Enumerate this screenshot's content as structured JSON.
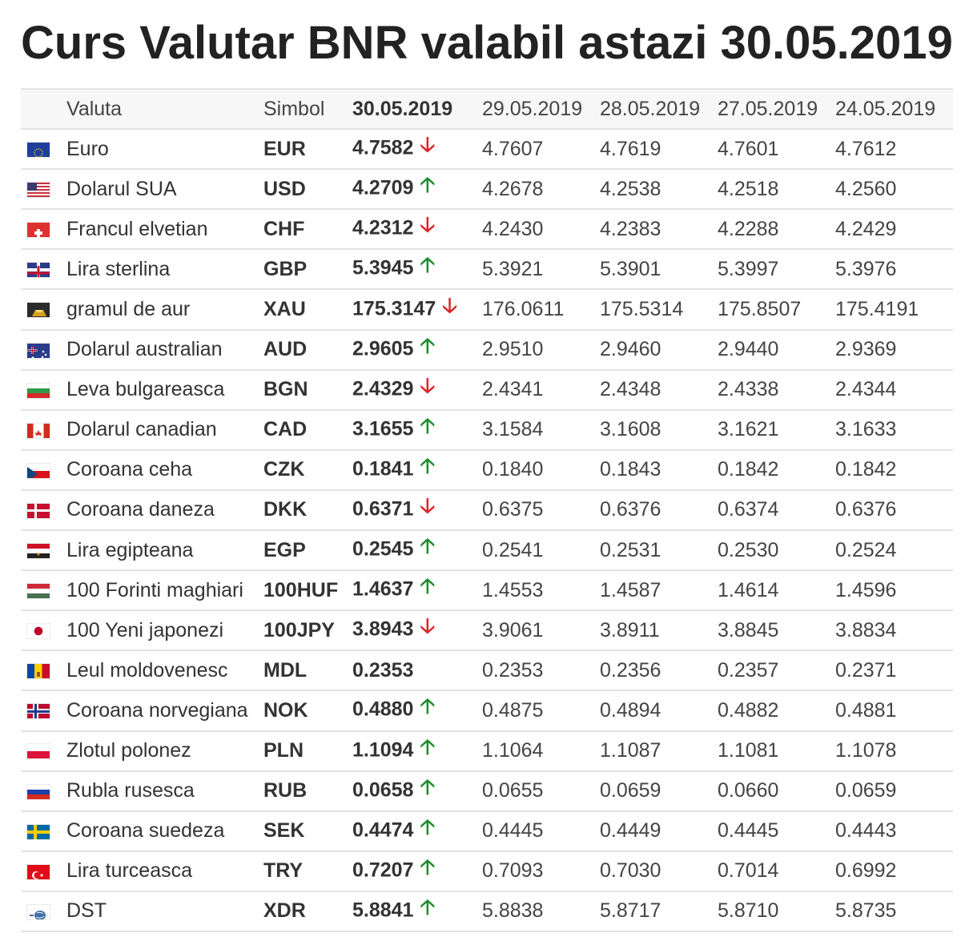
{
  "title": "Curs Valutar BNR valabil astazi 30.05.2019",
  "headers": {
    "currency": "Valuta",
    "symbol": "Simbol",
    "dates": [
      "30.05.2019",
      "29.05.2019",
      "28.05.2019",
      "27.05.2019",
      "24.05.2019"
    ]
  },
  "trend_glyphs": {
    "up": "🡡",
    "down": "🡣"
  },
  "colors": {
    "up": "#1e8c2d",
    "down": "#d9252a",
    "border": "#e3e3e3",
    "header_bg": "#f7f7f7"
  },
  "rows": [
    {
      "flag": "eu-flag",
      "name": "Euro",
      "symbol": "EUR",
      "today": "4.7582",
      "trend": "down",
      "values": [
        "4.7607",
        "4.7619",
        "4.7601",
        "4.7612"
      ]
    },
    {
      "flag": "us-flag",
      "name": "Dolarul SUA",
      "symbol": "USD",
      "today": "4.2709",
      "trend": "up",
      "values": [
        "4.2678",
        "4.2538",
        "4.2518",
        "4.2560"
      ]
    },
    {
      "flag": "ch-flag",
      "name": "Francul elvetian",
      "symbol": "CHF",
      "today": "4.2312",
      "trend": "down",
      "values": [
        "4.2430",
        "4.2383",
        "4.2288",
        "4.2429"
      ]
    },
    {
      "flag": "gb-flag",
      "name": "Lira sterlina",
      "symbol": "GBP",
      "today": "5.3945",
      "trend": "up",
      "values": [
        "5.3921",
        "5.3901",
        "5.3997",
        "5.3976"
      ]
    },
    {
      "flag": "gold-icon",
      "name": "gramul de aur",
      "symbol": "XAU",
      "today": "175.3147",
      "trend": "down",
      "values": [
        "176.0611",
        "175.5314",
        "175.8507",
        "175.4191"
      ]
    },
    {
      "flag": "au-flag",
      "name": "Dolarul australian",
      "symbol": "AUD",
      "today": "2.9605",
      "trend": "up",
      "values": [
        "2.9510",
        "2.9460",
        "2.9440",
        "2.9369"
      ]
    },
    {
      "flag": "bg-flag",
      "name": "Leva bulgareasca",
      "symbol": "BGN",
      "today": "2.4329",
      "trend": "down",
      "values": [
        "2.4341",
        "2.4348",
        "2.4338",
        "2.4344"
      ]
    },
    {
      "flag": "ca-flag",
      "name": "Dolarul canadian",
      "symbol": "CAD",
      "today": "3.1655",
      "trend": "up",
      "values": [
        "3.1584",
        "3.1608",
        "3.1621",
        "3.1633"
      ]
    },
    {
      "flag": "cz-flag",
      "name": "Coroana ceha",
      "symbol": "CZK",
      "today": "0.1841",
      "trend": "up",
      "values": [
        "0.1840",
        "0.1843",
        "0.1842",
        "0.1842"
      ]
    },
    {
      "flag": "dk-flag",
      "name": "Coroana daneza",
      "symbol": "DKK",
      "today": "0.6371",
      "trend": "down",
      "values": [
        "0.6375",
        "0.6376",
        "0.6374",
        "0.6376"
      ]
    },
    {
      "flag": "eg-flag",
      "name": "Lira egipteana",
      "symbol": "EGP",
      "today": "0.2545",
      "trend": "up",
      "values": [
        "0.2541",
        "0.2531",
        "0.2530",
        "0.2524"
      ]
    },
    {
      "flag": "hu-flag",
      "name": "100 Forinti maghiari",
      "symbol": "100HUF",
      "today": "1.4637",
      "trend": "up",
      "values": [
        "1.4553",
        "1.4587",
        "1.4614",
        "1.4596"
      ]
    },
    {
      "flag": "jp-flag",
      "name": "100 Yeni japonezi",
      "symbol": "100JPY",
      "today": "3.8943",
      "trend": "down",
      "values": [
        "3.9061",
        "3.8911",
        "3.8845",
        "3.8834"
      ]
    },
    {
      "flag": "md-flag",
      "name": "Leul moldovenesc",
      "symbol": "MDL",
      "today": "0.2353",
      "trend": "none",
      "values": [
        "0.2353",
        "0.2356",
        "0.2357",
        "0.2371"
      ]
    },
    {
      "flag": "no-flag",
      "name": "Coroana norvegiana",
      "symbol": "NOK",
      "today": "0.4880",
      "trend": "up",
      "values": [
        "0.4875",
        "0.4894",
        "0.4882",
        "0.4881"
      ]
    },
    {
      "flag": "pl-flag",
      "name": "Zlotul polonez",
      "symbol": "PLN",
      "today": "1.1094",
      "trend": "up",
      "values": [
        "1.1064",
        "1.1087",
        "1.1081",
        "1.1078"
      ]
    },
    {
      "flag": "ru-flag",
      "name": "Rubla rusesca",
      "symbol": "RUB",
      "today": "0.0658",
      "trend": "up",
      "values": [
        "0.0655",
        "0.0659",
        "0.0660",
        "0.0659"
      ]
    },
    {
      "flag": "se-flag",
      "name": "Coroana suedeza",
      "symbol": "SEK",
      "today": "0.4474",
      "trend": "up",
      "values": [
        "0.4445",
        "0.4449",
        "0.4445",
        "0.4443"
      ]
    },
    {
      "flag": "tr-flag",
      "name": "Lira turceasca",
      "symbol": "TRY",
      "today": "0.7207",
      "trend": "up",
      "values": [
        "0.7093",
        "0.7030",
        "0.7014",
        "0.6992"
      ]
    },
    {
      "flag": "imf-sdr-icon",
      "name": "DST",
      "symbol": "XDR",
      "today": "5.8841",
      "trend": "up",
      "values": [
        "5.8838",
        "5.8717",
        "5.8710",
        "5.8735"
      ]
    }
  ]
}
